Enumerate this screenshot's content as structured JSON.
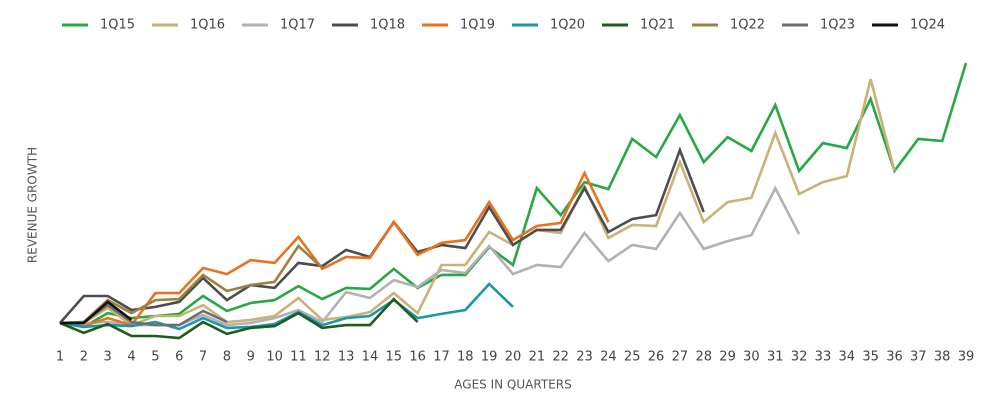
{
  "chart_data": {
    "type": "line",
    "xlabel": "AGES IN QUARTERS",
    "ylabel": "REVENUE GROWTH",
    "x": [
      1,
      2,
      3,
      4,
      5,
      6,
      7,
      8,
      9,
      10,
      11,
      12,
      13,
      14,
      15,
      16,
      17,
      18,
      19,
      20,
      21,
      22,
      23,
      24,
      25,
      26,
      27,
      28,
      29,
      30,
      31,
      32,
      33,
      34,
      35,
      36,
      37,
      38,
      39
    ],
    "xlim": [
      1,
      39
    ],
    "ylim": [
      -10,
      105
    ],
    "legend": "top",
    "series": [
      {
        "name": "1Q15",
        "color": "#27a844",
        "values": [
          0,
          -1.5,
          3.8,
          1.9,
          2.7,
          3.5,
          10.4,
          4.6,
          7.7,
          8.8,
          14.2,
          9.2,
          13.5,
          13.1,
          20.8,
          13.5,
          18.5,
          18.5,
          29.2,
          22.3,
          51.9,
          41.5,
          54.2,
          51.5,
          70.8,
          63.8,
          80,
          61.9,
          71.5,
          66.2,
          83.8,
          58.5,
          69.2,
          67.3,
          86.2,
          58.5,
          70.8,
          70,
          100
        ]
      },
      {
        "name": "1Q16",
        "color": "#c9b277",
        "values": [
          0,
          0,
          5.8,
          -0.8,
          2.7,
          2.7,
          6.9,
          0.4,
          1.2,
          2.7,
          9.6,
          1.2,
          2.3,
          4.2,
          11.5,
          3.8,
          22.3,
          22.3,
          35,
          30,
          35.8,
          34.6,
          52.7,
          32.7,
          37.7,
          37.3,
          61.9,
          38.8,
          46.5,
          48.1,
          73.1,
          49.6,
          54.2,
          56.5,
          93.8,
          58.5,
          null,
          null,
          null
        ]
      },
      {
        "name": "1Q17",
        "color": "#b2b2b2",
        "values": [
          0,
          0,
          0.4,
          -0.8,
          -0.8,
          -0.8,
          3.1,
          -0.8,
          0,
          1.9,
          5,
          0.4,
          11.9,
          9.6,
          16.5,
          13.8,
          20.4,
          19.2,
          29.6,
          18.8,
          22.3,
          21.5,
          34.6,
          23.8,
          30,
          28.5,
          42.3,
          28.5,
          31.5,
          33.8,
          51.9,
          34.2,
          null,
          null,
          null,
          null,
          null,
          null,
          null
        ]
      },
      {
        "name": "1Q18",
        "color": "#4d4d4f",
        "values": [
          0,
          10.4,
          10.4,
          5,
          6.2,
          8.1,
          17.3,
          8.8,
          14.6,
          13.5,
          23.1,
          21.9,
          28.1,
          25.4,
          38.8,
          27.3,
          30,
          28.8,
          44.6,
          30,
          35.8,
          35.8,
          51.9,
          35,
          40,
          41.5,
          66.5,
          42.7,
          null,
          null,
          null,
          null,
          null,
          null,
          null,
          null,
          null,
          null,
          null
        ]
      },
      {
        "name": "1Q19",
        "color": "#e8731e",
        "values": [
          0,
          -1.2,
          1.9,
          -0.8,
          11.5,
          11.5,
          21.2,
          18.8,
          24.2,
          23.1,
          33.1,
          20.8,
          25.4,
          25,
          38.8,
          26.2,
          30.8,
          31.9,
          46.5,
          31.9,
          37.3,
          38.5,
          57.7,
          38.8,
          null,
          null,
          null,
          null,
          null,
          null,
          null,
          null,
          null,
          null,
          null,
          null,
          null,
          null,
          null
        ]
      },
      {
        "name": "1Q20",
        "color": "#1a98aa",
        "values": [
          0,
          -1.5,
          -0.8,
          -1.2,
          0.4,
          -2.3,
          1.9,
          -1.9,
          -1.5,
          -0.4,
          4.2,
          -0.8,
          1.9,
          2.7,
          8.8,
          1.9,
          3.5,
          5,
          15,
          6.2,
          null,
          null,
          null,
          null,
          null,
          null,
          null,
          null,
          null,
          null,
          null,
          null,
          null,
          null,
          null,
          null,
          null,
          null,
          null
        ]
      },
      {
        "name": "1Q21",
        "color": "#1d5b1f",
        "values": [
          0,
          -3.8,
          -0.4,
          -5,
          -5,
          -5.8,
          0.4,
          -4.2,
          -1.9,
          -1.2,
          3.8,
          -1.9,
          -0.8,
          -0.8,
          9.2,
          0.4,
          null,
          null,
          null,
          null,
          null,
          null,
          null,
          null,
          null,
          null,
          null,
          null,
          null,
          null,
          null,
          null,
          null,
          null,
          null,
          null,
          null,
          null,
          null
        ]
      },
      {
        "name": "1Q22",
        "color": "#9c8142",
        "values": [
          0,
          0.4,
          8.8,
          3.8,
          8.8,
          9.2,
          18.5,
          12.3,
          14.6,
          15.8,
          29.6,
          21.2,
          null,
          null,
          null,
          null,
          null,
          null,
          null,
          null,
          null,
          null,
          null,
          null,
          null,
          null,
          null,
          null,
          null,
          null,
          null,
          null,
          null,
          null,
          null,
          null,
          null,
          null,
          null
        ]
      },
      {
        "name": "1Q23",
        "color": "#6e6e70",
        "values": [
          0,
          0.4,
          6.9,
          0.4,
          -0.8,
          -0.8,
          4.6,
          0.4,
          null,
          null,
          null,
          null,
          null,
          null,
          null,
          null,
          null,
          null,
          null,
          null,
          null,
          null,
          null,
          null,
          null,
          null,
          null,
          null,
          null,
          null,
          null,
          null,
          null,
          null,
          null,
          null,
          null,
          null,
          null
        ]
      },
      {
        "name": "1Q24",
        "color": "#111111",
        "values": [
          0,
          0,
          8.1,
          1.2,
          null,
          null,
          null,
          null,
          null,
          null,
          null,
          null,
          null,
          null,
          null,
          null,
          null,
          null,
          null,
          null,
          null,
          null,
          null,
          null,
          null,
          null,
          null,
          null,
          null,
          null,
          null,
          null,
          null,
          null,
          null,
          null,
          null,
          null,
          null
        ]
      }
    ]
  }
}
